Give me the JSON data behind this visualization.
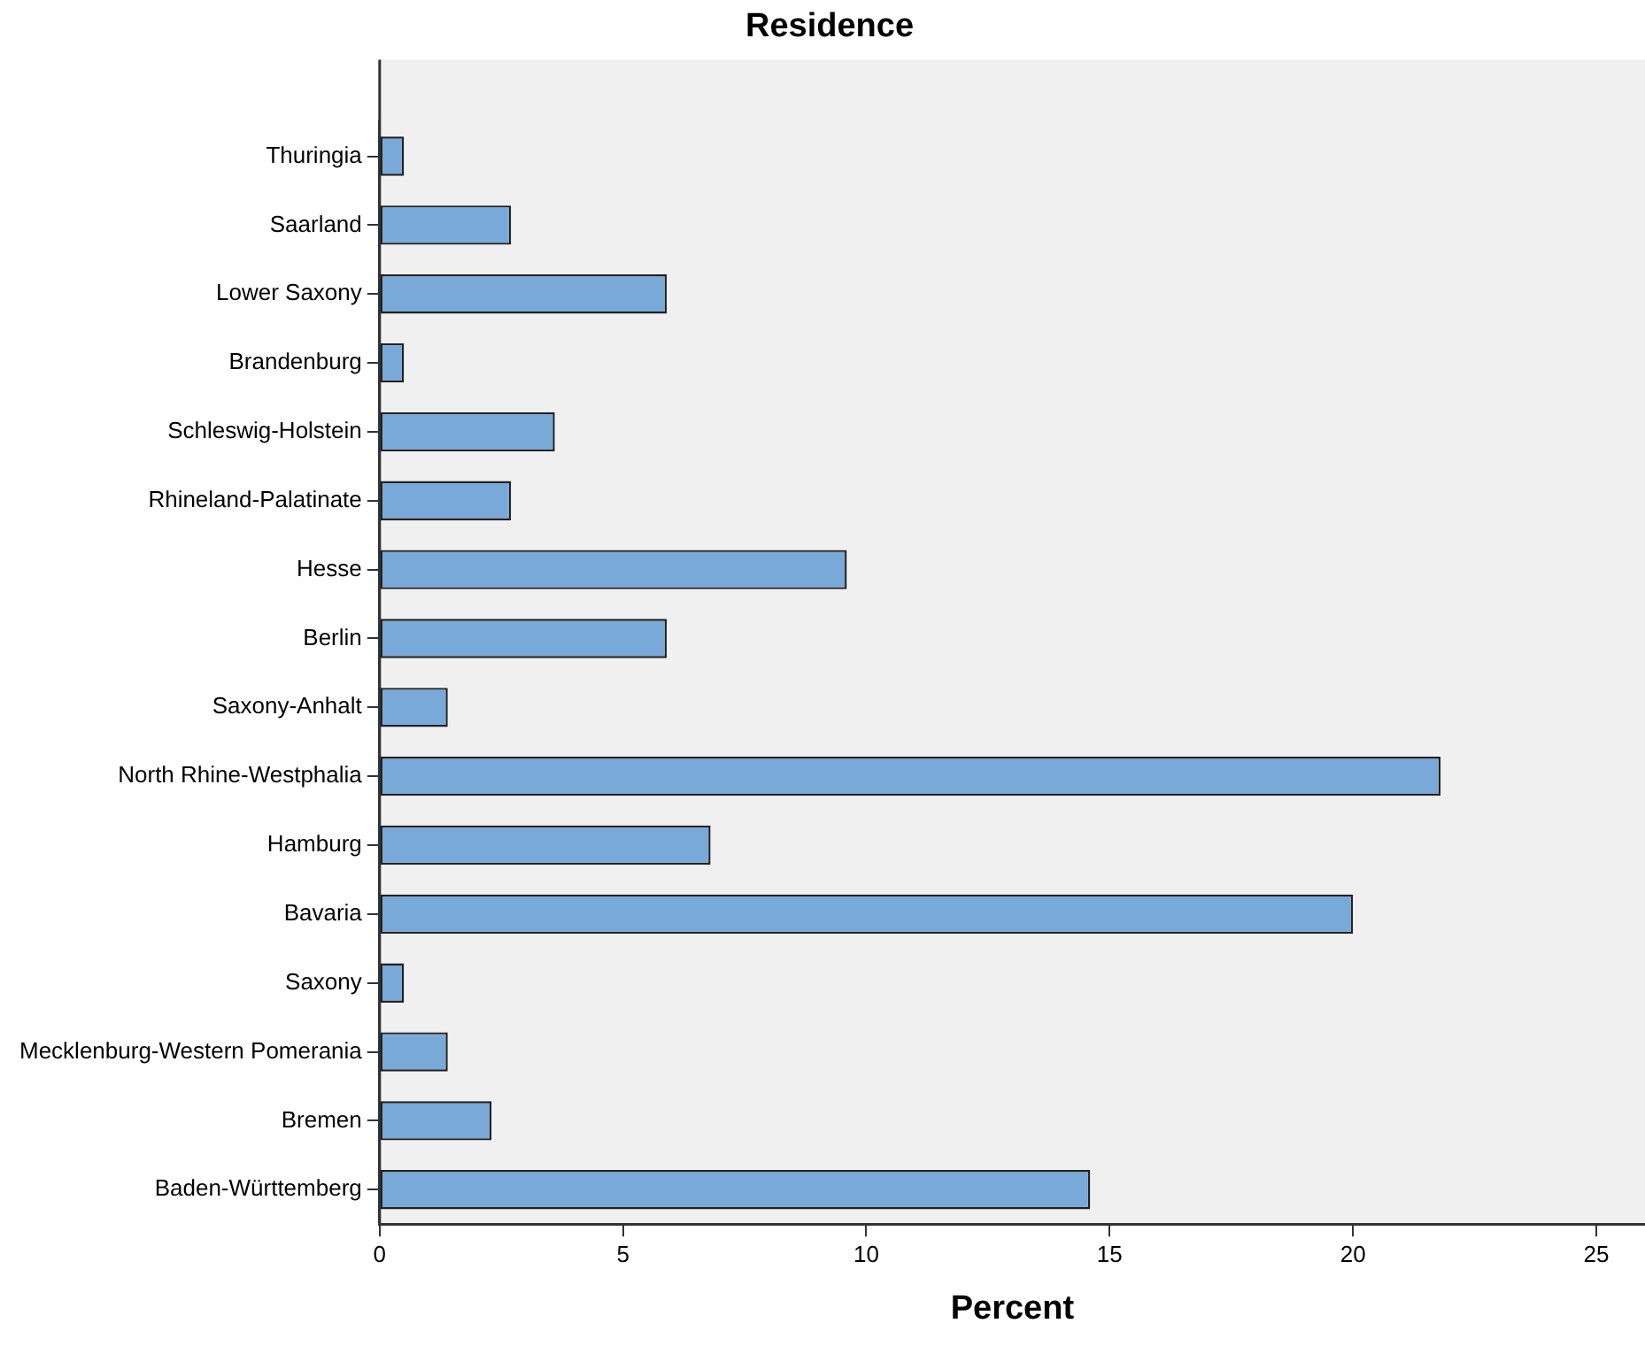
{
  "chart_data": {
    "type": "bar",
    "orientation": "horizontal",
    "title": "Residence",
    "xlabel": "Percent",
    "categories": [
      "Thuringia",
      "Saarland",
      "Lower Saxony",
      "Brandenburg",
      "Schleswig-Holstein",
      "Rhineland-Palatinate",
      "Hesse",
      "Berlin",
      "Saxony-Anhalt",
      "North Rhine-Westphalia",
      "Hamburg",
      "Bavaria",
      "Saxony",
      "Mecklenburg-Western Pomerania",
      "Bremen",
      "Baden-Württemberg"
    ],
    "values": [
      0.5,
      2.7,
      5.9,
      0.5,
      3.6,
      2.7,
      9.6,
      5.9,
      1.4,
      21.8,
      6.8,
      20.0,
      0.5,
      1.4,
      2.3,
      14.6
    ],
    "color": "#79a9d8",
    "xlim": [
      0,
      26
    ],
    "xticks": [
      0,
      5,
      10,
      15,
      20,
      25
    ],
    "grid": false,
    "legend": false
  }
}
